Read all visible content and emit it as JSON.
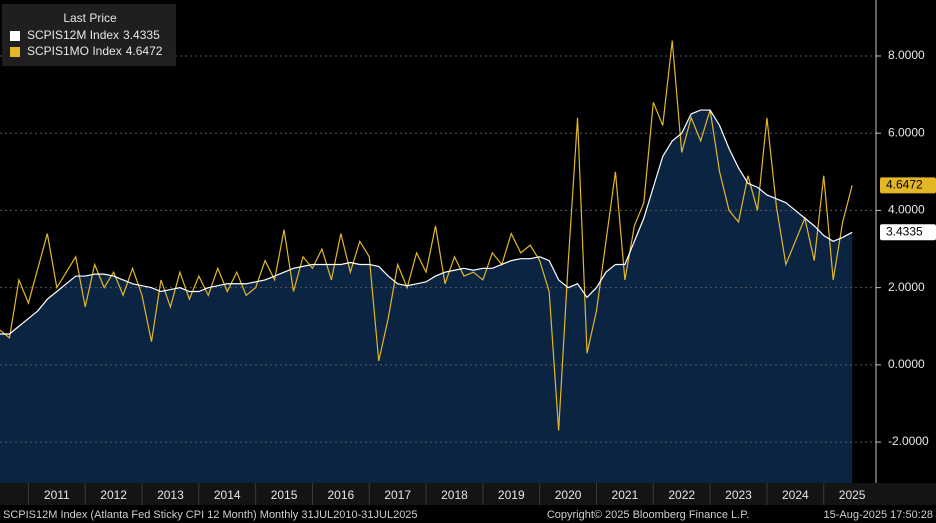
{
  "chart_data": {
    "type": "line",
    "legend_title": "Last Price",
    "footer_left": "SCPIS12M Index (Atlanta Fed Sticky CPI 12 Month)  Monthly 31JUL2010-31JUL2025",
    "footer_center": "Copyright© 2025 Bloomberg Finance L.P.",
    "footer_right": "15-Aug-2025 17:50:28",
    "x": [
      "2010-07",
      "2010-09",
      "2010-11",
      "2011-01",
      "2011-03",
      "2011-05",
      "2011-07",
      "2011-09",
      "2011-11",
      "2012-01",
      "2012-03",
      "2012-05",
      "2012-07",
      "2012-09",
      "2012-11",
      "2013-01",
      "2013-03",
      "2013-05",
      "2013-07",
      "2013-09",
      "2013-11",
      "2014-01",
      "2014-03",
      "2014-05",
      "2014-07",
      "2014-09",
      "2014-11",
      "2015-01",
      "2015-03",
      "2015-05",
      "2015-07",
      "2015-09",
      "2015-11",
      "2016-01",
      "2016-03",
      "2016-05",
      "2016-07",
      "2016-09",
      "2016-11",
      "2017-01",
      "2017-03",
      "2017-05",
      "2017-07",
      "2017-09",
      "2017-11",
      "2018-01",
      "2018-03",
      "2018-05",
      "2018-07",
      "2018-09",
      "2018-11",
      "2019-01",
      "2019-03",
      "2019-05",
      "2019-07",
      "2019-09",
      "2019-11",
      "2020-01",
      "2020-03",
      "2020-05",
      "2020-07",
      "2020-09",
      "2020-11",
      "2021-01",
      "2021-03",
      "2021-05",
      "2021-07",
      "2021-09",
      "2021-11",
      "2022-01",
      "2022-03",
      "2022-05",
      "2022-07",
      "2022-09",
      "2022-11",
      "2023-01",
      "2023-03",
      "2023-05",
      "2023-07",
      "2023-09",
      "2023-11",
      "2024-01",
      "2024-03",
      "2024-05",
      "2024-07",
      "2024-09",
      "2024-11",
      "2025-01",
      "2025-03",
      "2025-05",
      "2025-07"
    ],
    "series": [
      {
        "name": "SCPIS12M Index",
        "color": "#ffffff",
        "fill": "#0b2442",
        "values": [
          0.8,
          0.8,
          1.0,
          1.2,
          1.4,
          1.7,
          1.9,
          2.1,
          2.3,
          2.3,
          2.35,
          2.35,
          2.3,
          2.2,
          2.1,
          2.05,
          2.0,
          1.9,
          1.95,
          2.0,
          1.9,
          1.9,
          2.0,
          2.05,
          2.1,
          2.1,
          2.1,
          2.15,
          2.2,
          2.3,
          2.4,
          2.5,
          2.55,
          2.6,
          2.6,
          2.6,
          2.6,
          2.65,
          2.6,
          2.6,
          2.55,
          2.3,
          2.1,
          2.05,
          2.1,
          2.15,
          2.3,
          2.4,
          2.45,
          2.5,
          2.45,
          2.5,
          2.5,
          2.6,
          2.7,
          2.75,
          2.75,
          2.8,
          2.7,
          2.2,
          2.0,
          2.1,
          1.75,
          2.0,
          2.4,
          2.6,
          2.6,
          3.2,
          3.8,
          4.6,
          5.4,
          5.8,
          6.0,
          6.5,
          6.6,
          6.6,
          6.2,
          5.6,
          5.1,
          4.7,
          4.6,
          4.4,
          4.3,
          4.2,
          4.0,
          3.8,
          3.6,
          3.35,
          3.2,
          3.3,
          3.4335
        ]
      },
      {
        "name": "SCPIS1MO Index",
        "color": "#e3b726",
        "values": [
          0.9,
          0.7,
          2.2,
          1.6,
          2.5,
          3.4,
          2.0,
          2.4,
          2.8,
          1.5,
          2.6,
          2.0,
          2.4,
          1.8,
          2.5,
          1.8,
          0.6,
          2.2,
          1.5,
          2.4,
          1.7,
          2.3,
          1.8,
          2.5,
          1.9,
          2.4,
          1.8,
          2.0,
          2.7,
          2.2,
          3.5,
          1.9,
          2.8,
          2.5,
          3.0,
          2.2,
          3.4,
          2.4,
          3.2,
          2.8,
          0.1,
          1.2,
          2.6,
          2.0,
          2.9,
          2.4,
          3.6,
          2.1,
          2.8,
          2.3,
          2.4,
          2.2,
          2.9,
          2.6,
          3.4,
          2.9,
          3.1,
          2.7,
          1.9,
          -1.7,
          2.6,
          6.4,
          0.3,
          1.4,
          3.2,
          5.0,
          2.2,
          3.6,
          4.2,
          6.8,
          6.2,
          8.4,
          5.5,
          6.4,
          5.8,
          6.6,
          5.0,
          4.0,
          3.7,
          4.9,
          4.0,
          6.4,
          4.1,
          2.6,
          3.2,
          3.8,
          2.7,
          4.9,
          2.2,
          3.7,
          4.6472
        ]
      }
    ],
    "xlim": [
      2010.5,
      2025.92
    ],
    "xticks": [
      2011,
      2012,
      2013,
      2014,
      2015,
      2016,
      2017,
      2018,
      2019,
      2020,
      2021,
      2022,
      2023,
      2024,
      2025
    ],
    "ylim": [
      -3.06,
      9.45
    ],
    "yticks": [
      {
        "value": -2,
        "label": "-2.0000"
      },
      {
        "value": 0,
        "label": "0.0000"
      },
      {
        "value": 2,
        "label": "2.0000"
      },
      {
        "value": 4,
        "label": "4.0000"
      },
      {
        "value": 6,
        "label": "6.0000"
      },
      {
        "value": 8,
        "label": "8.0000"
      }
    ],
    "grid": true
  }
}
